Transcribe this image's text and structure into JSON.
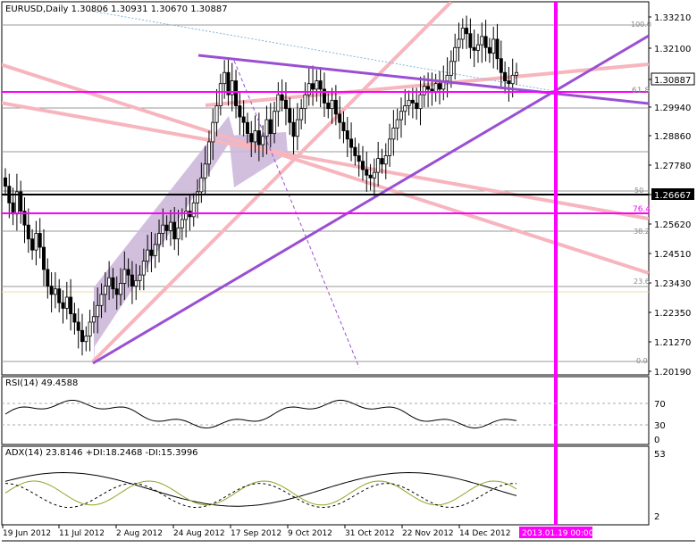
{
  "header": {
    "symbol_label": "EURUSD,Daily",
    "ohlc": "1.30806 1.30931 1.30670 1.30887"
  },
  "rsi_pane": {
    "label": "RSI(14) 49.4588",
    "levels": [
      "70",
      "30",
      "0"
    ]
  },
  "adx_pane": {
    "label": "ADX(14) 23.8146 +DI:18.2468 -DI:15.3996",
    "levels": [
      "53",
      "2"
    ]
  },
  "colors": {
    "magenta": "#ff00ff",
    "purple": "#9a4fd3",
    "pink": "#f7b5bd",
    "band": "#cdb8da",
    "gridline": "#9a9a9a",
    "price_highlight": "#000000"
  },
  "chart_data": [
    {
      "type": "candlestick",
      "symbol": "EURUSD",
      "timeframe": "Daily",
      "y_axis_ticks": [
        "1.33210",
        "1.32100",
        "1.30887",
        "1.29940",
        "1.28860",
        "1.27780",
        "1.26667",
        "1.25620",
        "1.24510",
        "1.23430",
        "1.22350",
        "1.21270",
        "1.20190"
      ],
      "y_axis_values": [
        1.3321,
        1.321,
        1.2994,
        1.2886,
        1.2778,
        1.2562,
        1.2451,
        1.2343,
        1.2235,
        1.2127,
        1.2019
      ],
      "ylim": [
        1.2,
        1.3345
      ],
      "current_price": "1.30887",
      "marked_level": "1.26667",
      "x_axis_labels": [
        "19 Jun 2012",
        "11 Jul 2012",
        "2 Aug 2012",
        "24 Aug 2012",
        "17 Sep 2012",
        "9 Oct 2012",
        "31 Oct 2012",
        "22 Nov 2012",
        "14 Dec 2012"
      ],
      "cursor_date_label": "2013.01.19 00:00",
      "fibonacci_levels": [
        "100.0",
        "61.8",
        "50",
        "38.2",
        "23.6",
        "0.0"
      ],
      "fibonacci_extra_labels": [
        "76.4"
      ],
      "close_series": [
        1.268,
        1.262,
        1.258,
        1.266,
        1.259,
        1.254,
        1.249,
        1.245,
        1.251,
        1.246,
        1.238,
        1.232,
        1.229,
        1.231,
        1.226,
        1.224,
        1.228,
        1.222,
        1.219,
        1.216,
        1.212,
        1.214,
        1.219,
        1.221,
        1.225,
        1.229,
        1.232,
        1.235,
        1.231,
        1.229,
        1.233,
        1.238,
        1.236,
        1.232,
        1.234,
        1.236,
        1.241,
        1.245,
        1.243,
        1.247,
        1.251,
        1.254,
        1.252,
        1.255,
        1.249,
        1.253,
        1.256,
        1.259,
        1.257,
        1.262,
        1.266,
        1.271,
        1.276,
        1.284,
        1.291,
        1.297,
        1.305,
        1.309,
        1.301,
        1.306,
        1.297,
        1.293,
        1.291,
        1.287,
        1.284,
        1.288,
        1.283,
        1.286,
        1.292,
        1.287,
        1.295,
        1.301,
        1.299,
        1.296,
        1.291,
        1.286,
        1.292,
        1.296,
        1.301,
        1.305,
        1.303,
        1.306,
        1.303,
        1.298,
        1.296,
        1.299,
        1.294,
        1.291,
        1.288,
        1.285,
        1.282,
        1.279,
        1.277,
        1.274,
        1.272,
        1.271,
        1.273,
        1.278,
        1.276,
        1.279,
        1.285,
        1.289,
        1.292,
        1.295,
        1.297,
        1.299,
        1.298,
        1.296,
        1.301,
        1.304,
        1.303,
        1.302,
        1.305,
        1.303,
        1.306,
        1.308,
        1.313,
        1.318,
        1.321,
        1.325,
        1.323,
        1.318,
        1.317,
        1.319,
        1.322,
        1.318,
        1.316,
        1.321,
        1.314,
        1.309,
        1.306,
        1.305,
        1.308,
        1.309
      ]
    },
    {
      "type": "line",
      "indicator": "RSI(14)",
      "value": "49.4588",
      "levels": [
        70,
        30,
        0
      ]
    },
    {
      "type": "line",
      "indicator": "ADX(14)",
      "adx": "23.8146",
      "plus_di": "18.2468",
      "minus_di": "15.3996",
      "levels": [
        53,
        2
      ]
    }
  ]
}
